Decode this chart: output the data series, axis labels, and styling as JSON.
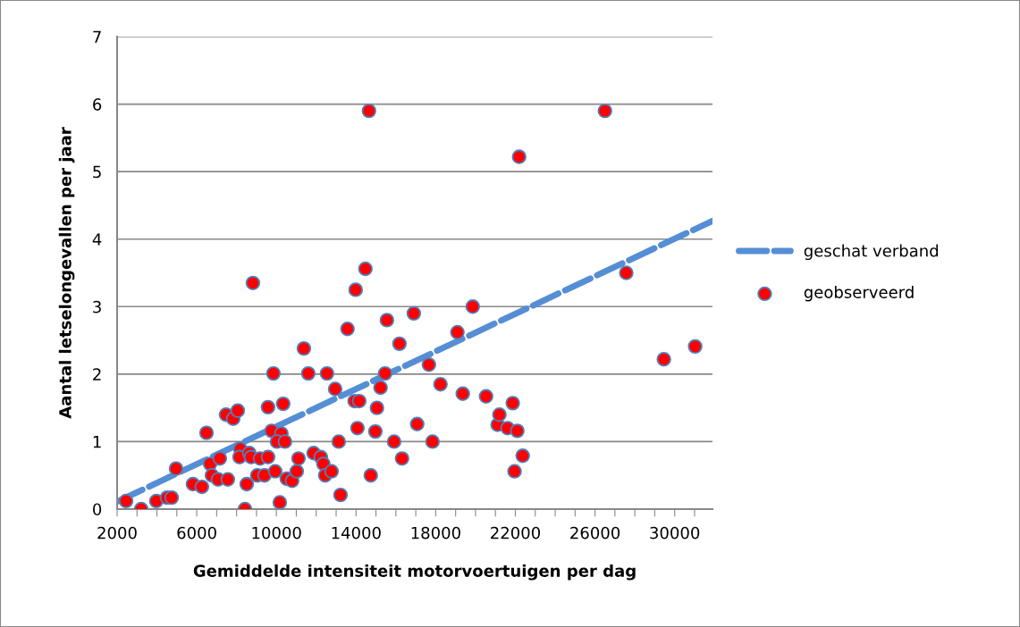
{
  "chart_data": {
    "type": "scatter",
    "xlabel": "Gemiddelde intensiteit motorvoertuigen per dag",
    "ylabel": "Aantal letselongevallen per jaar",
    "xlim": [
      2000,
      31900
    ],
    "ylim": [
      0,
      7
    ],
    "xticks": [
      2000,
      {
        "value": 3000,
        "label": null
      },
      {
        "value": 4000,
        "label": null
      },
      {
        "value": 5000,
        "label": null
      },
      6000,
      {
        "value": 7000,
        "label": null
      },
      {
        "value": 8000,
        "label": null
      },
      {
        "value": 9000,
        "label": null
      },
      10000,
      {
        "value": 11000,
        "label": null
      },
      {
        "value": 12000,
        "label": null
      },
      {
        "value": 13000,
        "label": null
      },
      14000,
      {
        "value": 15000,
        "label": null
      },
      {
        "value": 16000,
        "label": null
      },
      {
        "value": 17000,
        "label": null
      },
      18000,
      {
        "value": 19000,
        "label": null
      },
      {
        "value": 20000,
        "label": null
      },
      {
        "value": 21000,
        "label": null
      },
      22000,
      {
        "value": 23000,
        "label": null
      },
      {
        "value": 24000,
        "label": null
      },
      {
        "value": 25000,
        "label": null
      },
      26000,
      {
        "value": 27000,
        "label": null
      },
      {
        "value": 28000,
        "label": null
      },
      {
        "value": 29000,
        "label": null
      },
      30000,
      {
        "value": 31000,
        "label": null
      }
    ],
    "yticks": [
      0,
      1,
      2,
      3,
      4,
      5,
      6,
      7
    ],
    "grid": "y",
    "legend": "right",
    "series": [
      {
        "name": "geschat verband",
        "type": "line",
        "color": "#558ed5",
        "line_style": "dashed",
        "marker": "none",
        "x": [
          2000,
          31900
        ],
        "values": [
          0.11,
          4.27
        ]
      },
      {
        "name": "geobserveerd",
        "color": "#ff0000",
        "marker": "circle",
        "x": [
          2450,
          3210,
          3970,
          4510,
          4740,
          4960,
          5810,
          6260,
          6490,
          6670,
          6760,
          7070,
          7160,
          7560,
          7470,
          7830,
          8060,
          8190,
          8150,
          8640,
          8730,
          8420,
          8510,
          8820,
          9180,
          9580,
          9040,
          9400,
          9580,
          9940,
          9760,
          10250,
          10030,
          10430,
          9850,
          10340,
          10170,
          10520,
          10790,
          11020,
          11110,
          11380,
          11600,
          11870,
          12230,
          12360,
          12450,
          12770,
          12540,
          12950,
          13130,
          13220,
          13570,
          13930,
          14160,
          13980,
          14070,
          14470,
          14650,
          14740,
          14970,
          15050,
          15230,
          15460,
          15550,
          15910,
          16180,
          16310,
          16900,
          17070,
          17660,
          17840,
          18240,
          19090,
          19360,
          19860,
          20530,
          21110,
          21200,
          21610,
          21870,
          21960,
          22100,
          22190,
          22370,
          26500,
          27570,
          29460,
          31030
        ],
        "values": [
          0.12,
          0,
          0.12,
          0.17,
          0.17,
          0.6,
          0.37,
          0.33,
          1.13,
          0.67,
          0.5,
          0.44,
          0.75,
          0.44,
          1.4,
          1.34,
          1.46,
          0.89,
          0.77,
          0.83,
          0.77,
          0,
          0.37,
          3.35,
          0.75,
          0.77,
          0.5,
          0.5,
          1.51,
          0.56,
          1.16,
          1.12,
          1.0,
          1.0,
          2.01,
          1.56,
          0.1,
          0.45,
          0.42,
          0.56,
          0.75,
          2.38,
          2.01,
          0.83,
          0.77,
          0.67,
          0.5,
          0.56,
          2.01,
          1.78,
          1.0,
          0.21,
          2.67,
          1.6,
          1.6,
          3.25,
          1.2,
          3.56,
          5.9,
          0.5,
          1.15,
          1.5,
          1.8,
          2.01,
          2.8,
          1.0,
          2.45,
          0.75,
          2.9,
          1.26,
          2.14,
          1.0,
          1.85,
          2.62,
          1.71,
          3.0,
          1.67,
          1.25,
          1.4,
          1.2,
          1.57,
          0.56,
          1.16,
          5.22,
          0.79,
          5.9,
          3.5,
          2.22,
          2.41
        ]
      }
    ]
  }
}
